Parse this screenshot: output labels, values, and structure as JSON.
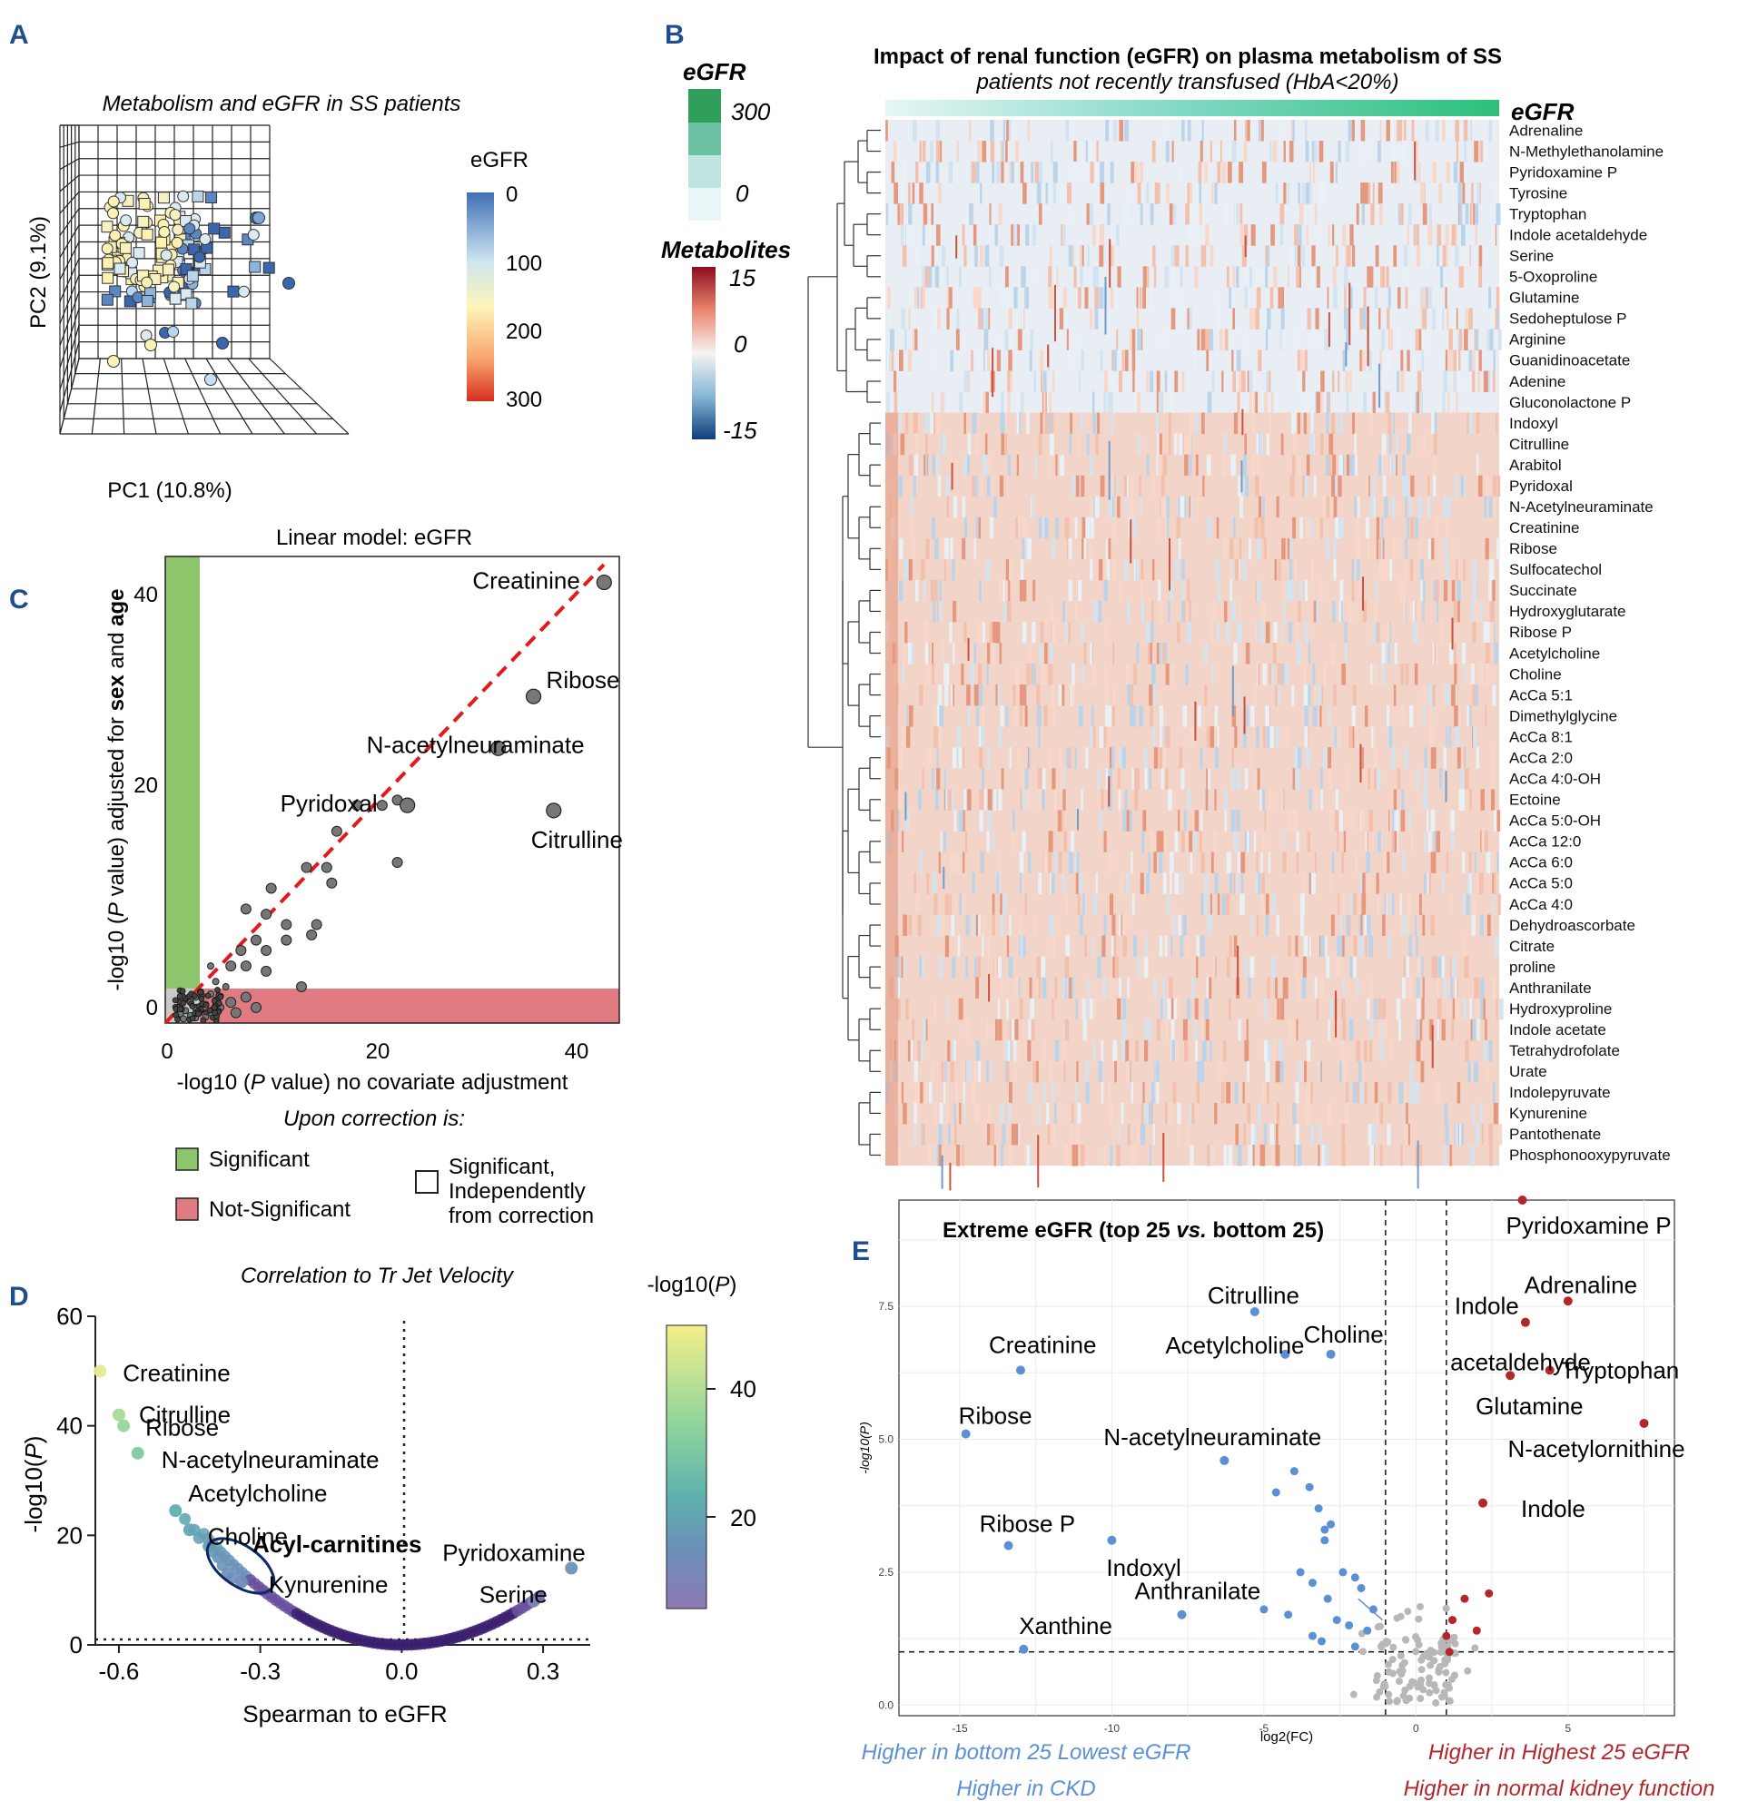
{
  "panel_labels": [
    "A",
    "B",
    "C",
    "D",
    "E"
  ],
  "colors": {
    "blue": "#5b8fd6",
    "red": "#b3272b",
    "grey": "#b8b8b8",
    "green": "#8cc56b",
    "pink": "#e07b82",
    "dashed": "#e31a1c"
  },
  "chart_data": [
    {
      "id": "A",
      "type": "scatter",
      "title": "Metabolism and eGFR in SS patients",
      "xlabel": "PC1 (10.8%)",
      "ylabel": "PC2 (9.1%)",
      "colorbar": {
        "title": "eGFR",
        "ticks": [
          "0",
          "100",
          "200",
          "300"
        ]
      }
    },
    {
      "id": "B",
      "type": "heatmap",
      "title": "Impact of renal function (eGFR) on plasma metabolism of SS",
      "subtitle": "patients not recently transfused (HbA<20%)",
      "egfr_legend": {
        "title": "eGFR",
        "ticks": [
          "300",
          "0"
        ]
      },
      "metab_legend": {
        "title": "Metabolites",
        "ticks": [
          "15",
          "0",
          "-15"
        ]
      },
      "col_label": "eGFR",
      "rows": [
        "Adrenaline",
        "N-Methylethanolamine",
        "Pyridoxamine P",
        "Tyrosine",
        "Tryptophan",
        "Indole acetaldehyde",
        "Serine",
        "5-Oxoproline",
        "Glutamine",
        "Sedoheptulose P",
        "Arginine",
        "Guanidinoacetate",
        "Adenine",
        "Gluconolactone P",
        "Indoxyl",
        "Citrulline",
        "Arabitol",
        "Pyridoxal",
        "N-Acetylneuraminate",
        "Creatinine",
        "Ribose",
        "Sulfocatechol",
        "Succinate",
        "Hydroxyglutarate",
        "Ribose P",
        "Acetylcholine",
        "Choline",
        "AcCa 5:1",
        "Dimethylglycine",
        "AcCa 8:1",
        "AcCa 2:0",
        "AcCa 4:0-OH",
        "Ectoine",
        "AcCa 5:0-OH",
        "AcCa 12:0",
        "AcCa 6:0",
        "AcCa 5:0",
        "AcCa 4:0",
        "Dehydroascorbate",
        "Citrate",
        "proline",
        "Anthranilate",
        "Hydroxyproline",
        "Indole acetate",
        "Tetrahydrofolate",
        "Urate",
        "Indolepyruvate",
        "Kynurenine",
        "Pantothenate",
        "Phosphonooxypyruvate"
      ]
    },
    {
      "id": "C",
      "type": "scatter",
      "title": "Linear model: eGFR",
      "xlabel_parts": [
        "-log10 (",
        "P",
        " value) no covariate adjustment"
      ],
      "ylabel_parts": [
        "-log10 (",
        "P",
        " value) adjusted for ",
        "sex",
        " and ",
        "age"
      ],
      "xlim": [
        0,
        45
      ],
      "ylim": [
        0,
        45
      ],
      "xticks": [
        "0",
        "20",
        "40"
      ],
      "yticks": [
        "0",
        "20",
        "40"
      ],
      "labeled_points": [
        {
          "label": "Creatinine",
          "x": 43.5,
          "y": 42.5
        },
        {
          "label": "Ribose",
          "x": 36.5,
          "y": 31.5
        },
        {
          "label": "N-acetylneuraminate",
          "x": 33,
          "y": 26.5
        },
        {
          "label": "Pyridoxal",
          "x": 24,
          "y": 21
        },
        {
          "label": "Citrulline",
          "x": 38.5,
          "y": 20.5
        }
      ],
      "points": [
        [
          19,
          21
        ],
        [
          21.5,
          21
        ],
        [
          23,
          21.5
        ],
        [
          17,
          18.5
        ],
        [
          16,
          15
        ],
        [
          16.5,
          13.5
        ],
        [
          23,
          15.5
        ],
        [
          14,
          15
        ],
        [
          10.5,
          13
        ],
        [
          8,
          11
        ],
        [
          10,
          10.5
        ],
        [
          12,
          9.5
        ],
        [
          14.5,
          8.5
        ],
        [
          15,
          9.5
        ],
        [
          12,
          8
        ],
        [
          9,
          8
        ],
        [
          10,
          7
        ],
        [
          7.5,
          7
        ],
        [
          8,
          5.5
        ],
        [
          6.5,
          5.5
        ],
        [
          10,
          5
        ],
        [
          13.5,
          3.5
        ],
        [
          5,
          4
        ],
        [
          4.5,
          5.5
        ],
        [
          6,
          3.5
        ],
        [
          3.5,
          3
        ],
        [
          4.5,
          2.8
        ],
        [
          3,
          2.5
        ],
        [
          5,
          2.2
        ],
        [
          2.5,
          2
        ],
        [
          4,
          1.8
        ],
        [
          3,
          1.5
        ],
        [
          6.5,
          2
        ],
        [
          5.5,
          1.5
        ],
        [
          2,
          1.2
        ],
        [
          3.5,
          1.2
        ],
        [
          4.5,
          1
        ],
        [
          1.5,
          0.9
        ],
        [
          2.5,
          0.7
        ],
        [
          3,
          0.5
        ],
        [
          5,
          0.8
        ],
        [
          1.8,
          0.4
        ],
        [
          4,
          0.6
        ],
        [
          7,
          1
        ],
        [
          9,
          1.5
        ],
        [
          8,
          2.5
        ],
        [
          1.2,
          1.5
        ]
      ],
      "legend_title": "Upon correction is:",
      "legend": [
        "Significant",
        "Not-Significant",
        "Significant,",
        "Independently",
        "from correction"
      ]
    },
    {
      "id": "D",
      "type": "scatter",
      "title": "Correlation to Tr Jet Velocity",
      "xlabel": "Spearman to eGFR",
      "ylabel_parts": [
        "-log10(",
        "P",
        ")"
      ],
      "xlim": [
        -0.65,
        0.4
      ],
      "ylim": [
        0,
        60
      ],
      "xticks": [
        "-0.6",
        "-0.3",
        "0.0",
        "0.3"
      ],
      "yticks": [
        "0",
        "20",
        "40",
        "60"
      ],
      "colorbar": {
        "title_parts": [
          "-log10(",
          "P",
          ")"
        ],
        "ticks": [
          "40",
          "20"
        ]
      },
      "labeled_points": [
        {
          "label": "Creatinine",
          "x": -0.64,
          "y": 50
        },
        {
          "label": "Citrulline",
          "x": -0.6,
          "y": 42
        },
        {
          "label": "Ribose",
          "x": -0.59,
          "y": 40
        },
        {
          "label": "N-acetylneuraminate",
          "x": -0.56,
          "y": 35
        },
        {
          "label": "Acetylcholine",
          "x": -0.48,
          "y": 24.5
        },
        {
          "label": "Choline",
          "x": -0.45,
          "y": 21
        },
        {
          "label": "Kynurenine",
          "x": -0.34,
          "y": 11.5
        },
        {
          "label": "Pyridoxamine",
          "x": 0.36,
          "y": 14
        },
        {
          "label": "Serine",
          "x": 0.28,
          "y": 8
        }
      ],
      "annotation": "Acyl-carnitines"
    },
    {
      "id": "E",
      "type": "scatter",
      "title": "Extreme eGFR  (top 25 vs. bottom 25)",
      "title_parts": [
        "Extreme eGFR  (top 25 ",
        "vs.",
        " bottom 25)"
      ],
      "xlabel": "log2(FC)",
      "ylabel": "-log10(P)",
      "xlim": [
        -17,
        8.5
      ],
      "ylim": [
        -0.2,
        9.5
      ],
      "xticks": [
        "-15",
        "-10",
        "-5",
        "0",
        "5"
      ],
      "yticks": [
        "0.0",
        "2.5",
        "5.0",
        "7.5"
      ],
      "thresholds": {
        "x": [
          -1,
          1
        ],
        "y": 1
      },
      "labeled_points": [
        {
          "label": "Pyridoxamine P",
          "x": 3.5,
          "y": 9.5,
          "dir": "up"
        },
        {
          "label": "Adrenaline",
          "x": 5,
          "y": 7.6,
          "dir": "up"
        },
        {
          "label": "Indole",
          "x": 3.6,
          "y": 7.2,
          "dir": "up"
        },
        {
          "label": "acetaldehyde",
          "x": 3.1,
          "y": 6.35,
          "dir": "up"
        },
        {
          "label": "Tryptophan",
          "x": 4.4,
          "y": 6.3,
          "dir": "up"
        },
        {
          "label": "Glutamine",
          "x": 3.1,
          "y": 6.2,
          "dir": "up"
        },
        {
          "label": "N-acetylornithine",
          "x": 7.5,
          "y": 5.3,
          "dir": "up"
        },
        {
          "label": "Indole",
          "x": 2.2,
          "y": 3.8,
          "dir": "up"
        },
        {
          "label": "Citrulline",
          "x": -5.3,
          "y": 7.4,
          "dir": "down"
        },
        {
          "label": "Acetylcholine",
          "x": -4.3,
          "y": 6.6,
          "dir": "down"
        },
        {
          "label": "Choline",
          "x": -2.8,
          "y": 6.6,
          "dir": "down"
        },
        {
          "label": "Creatinine",
          "x": -13,
          "y": 6.3,
          "dir": "down"
        },
        {
          "label": "Ribose",
          "x": -14.8,
          "y": 5.1,
          "dir": "down"
        },
        {
          "label": "N-acetylneuraminate",
          "x": -6.3,
          "y": 4.6,
          "dir": "down"
        },
        {
          "label": "Ribose P",
          "x": -13.4,
          "y": 3.0,
          "dir": "down"
        },
        {
          "label": "Indoxyl",
          "x": -10,
          "y": 3.1,
          "dir": "down"
        },
        {
          "label": "Anthranilate",
          "x": -7.7,
          "y": 1.7,
          "dir": "down"
        },
        {
          "label": "Xanthine",
          "x": -12.9,
          "y": 1.05,
          "dir": "down"
        }
      ],
      "captions": {
        "left": [
          "Higher in bottom 25 Lowest eGFR",
          "Higher in CKD"
        ],
        "right": [
          "Higher in Highest 25 eGFR",
          "Higher in normal kidney function"
        ]
      }
    }
  ]
}
